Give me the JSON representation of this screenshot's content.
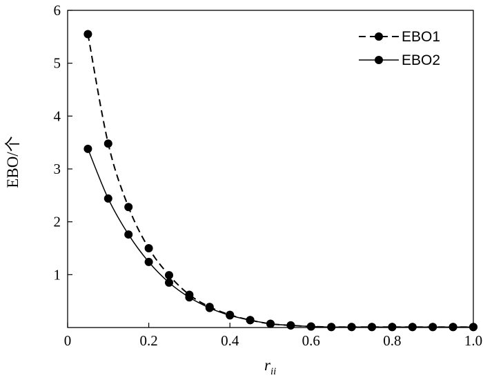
{
  "chart_data": {
    "type": "line",
    "xlabel": "r",
    "xlabel_subscript": "ii",
    "ylabel": "EBO/个",
    "xlim": [
      0,
      1.0
    ],
    "ylim": [
      0,
      6
    ],
    "xticks": [
      0,
      0.2,
      0.4,
      0.6,
      0.8,
      1.0
    ],
    "xtick_labels": [
      "0",
      "0.2",
      "0.4",
      "0.6",
      "0.8",
      "1.0"
    ],
    "yticks": [
      1,
      2,
      3,
      4,
      5,
      6
    ],
    "ytick_labels": [
      "1",
      "2",
      "3",
      "4",
      "5",
      "6"
    ],
    "grid": false,
    "legend_position": "top-right",
    "x": [
      0.05,
      0.1,
      0.15,
      0.2,
      0.25,
      0.3,
      0.35,
      0.4,
      0.45,
      0.5,
      0.55,
      0.6,
      0.65,
      0.7,
      0.75,
      0.8,
      0.85,
      0.9,
      0.95,
      1.0
    ],
    "series": [
      {
        "name": "EBO1",
        "style": "dashed",
        "color": "#000000",
        "values": [
          5.55,
          3.48,
          2.28,
          1.5,
          0.99,
          0.62,
          0.39,
          0.24,
          0.14,
          0.07,
          0.04,
          0.02,
          0.01,
          0.01,
          0.01,
          0.01,
          0.01,
          0.01,
          0.01,
          0.01
        ]
      },
      {
        "name": "EBO2",
        "style": "solid",
        "color": "#000000",
        "values": [
          3.38,
          2.44,
          1.76,
          1.24,
          0.85,
          0.57,
          0.37,
          0.23,
          0.14,
          0.07,
          0.04,
          0.02,
          0.01,
          0.01,
          0.01,
          0.01,
          0.01,
          0.01,
          0.01,
          0.01
        ]
      }
    ]
  }
}
